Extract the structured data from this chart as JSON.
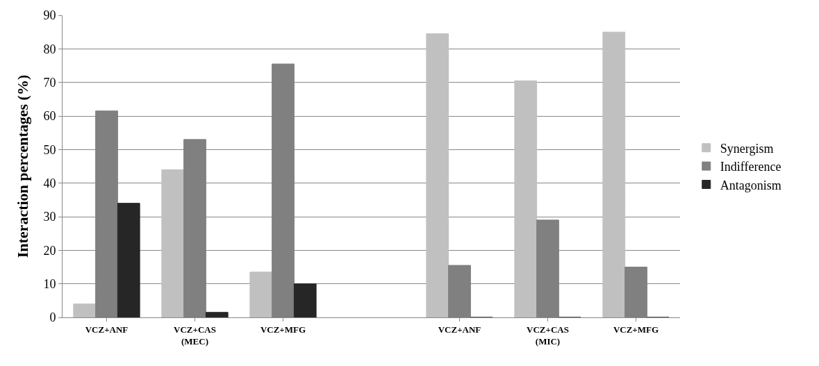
{
  "chart_data": {
    "type": "bar",
    "ylabel": "Interaction percentages (%)",
    "categories": [
      "VCZ+ANF",
      "VCZ+CAS\n(MEC)",
      "VCZ+MFG",
      null,
      "VCZ+ANF",
      "VCZ+CAS\n(MIC)",
      "VCZ+MFG"
    ],
    "series": [
      {
        "name": "Synergism",
        "color": "#c0c0c0",
        "values": [
          4,
          44,
          13.5,
          null,
          84.5,
          70.5,
          85
        ]
      },
      {
        "name": "Indifference",
        "color": "#808080",
        "values": [
          61.5,
          53,
          75.5,
          null,
          15.5,
          29,
          15
        ]
      },
      {
        "name": "Antagonism",
        "color": "#262626",
        "values": [
          34,
          1.5,
          10,
          null,
          0,
          0,
          0
        ]
      }
    ],
    "ylim": [
      0,
      90
    ],
    "yticks": [
      0,
      10,
      20,
      30,
      40,
      50,
      60,
      70,
      80,
      90
    ],
    "grid": "y",
    "legend": "right"
  }
}
